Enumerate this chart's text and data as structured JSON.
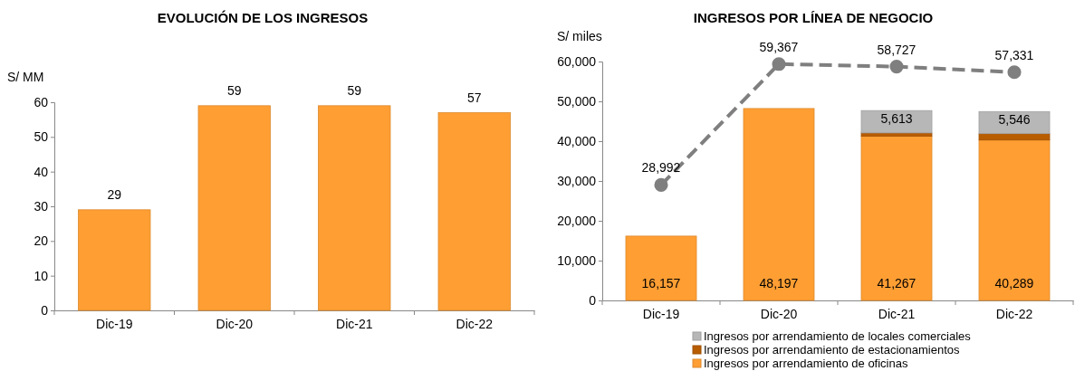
{
  "chart_data": [
    {
      "type": "bar",
      "title": "EVOLUCIÓN DE LOS INGRESOS",
      "ylabel": "S/ MM",
      "categories": [
        "Dic-19",
        "Dic-20",
        "Dic-21",
        "Dic-22"
      ],
      "values": [
        29,
        59,
        59,
        57
      ],
      "color": "#ff9e33",
      "ylim": [
        0,
        60
      ],
      "yticks": [
        0,
        10,
        20,
        30,
        40,
        50,
        60
      ],
      "data_labels": true,
      "grid": false,
      "legend": false
    },
    {
      "type": "bar",
      "title": "INGRESOS POR LÍNEA DE NEGOCIO",
      "ylabel": "S/ miles",
      "categories": [
        "Dic-19",
        "Dic-20",
        "Dic-21",
        "Dic-22"
      ],
      "stacked": true,
      "ylim": [
        0,
        60000
      ],
      "yticks": [
        {
          "value": 0,
          "label": "0"
        },
        {
          "value": 10000,
          "label": "10,000"
        },
        {
          "value": 20000,
          "label": "20,000"
        },
        {
          "value": 30000,
          "label": "30,000"
        },
        {
          "value": 40000,
          "label": "40,000"
        },
        {
          "value": 50000,
          "label": "50,000"
        },
        {
          "value": 60000,
          "label": "60,000"
        }
      ],
      "grid": false,
      "legend": "bottom",
      "series": [
        {
          "name": "Ingresos por arrendamiento de oficinas",
          "color": "#ff9e33",
          "values": [
            16157,
            48197,
            41267,
            40289
          ],
          "value_labels": [
            "16,157",
            "48,197",
            "41,267",
            "40,289"
          ]
        },
        {
          "name": "Ingresos por arrendamiento de estacionamientos",
          "color": "#b85c00",
          "values": [
            null,
            null,
            800,
            1600
          ],
          "value_labels": [
            null,
            null,
            null,
            null
          ]
        },
        {
          "name": "Ingresos por arrendamiento de locales comerciales",
          "color": "#b7b7b7",
          "values": [
            null,
            null,
            5613,
            5546
          ],
          "value_labels": [
            null,
            null,
            "5,613",
            "5,546"
          ]
        },
        {
          "type": "line",
          "color": "#7f7f7f",
          "values": [
            28992,
            59367,
            58727,
            57331
          ],
          "value_labels": [
            "28,992",
            "59,367",
            "58,727",
            "57,331"
          ],
          "marker": "circle",
          "line_style": "dashed"
        }
      ]
    }
  ]
}
